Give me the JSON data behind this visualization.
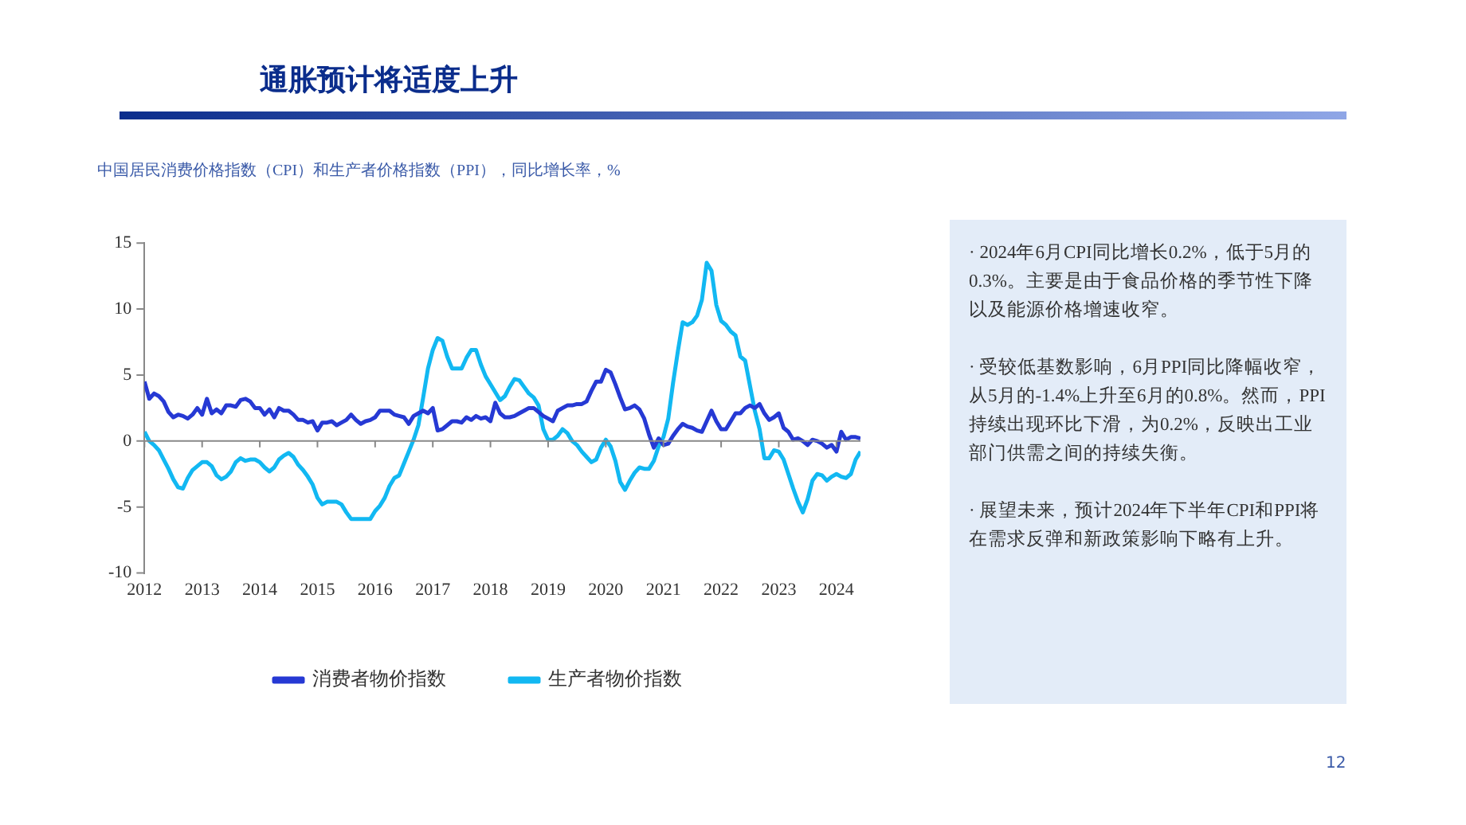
{
  "chart_data": {
    "type": "line",
    "title": "通胀预计将适度上升",
    "subtitle": "中国居民消费价格指数（CPI）和生产者价格指数（PPI），同比增长率，%",
    "annotations": [
      "· 2024年6月CPI同比增长0.2%，低于5月的0.3%。主要是由于食品价格的季节性下降以及能源价格增速收窄。",
      "· 受较低基数影响，6月PPI同比降幅收窄，从5月的-1.4%上升至6月的0.8%。然而，PPI持续出现环比下滑，为0.2%，反映出工业部门供需之间的持续失衡。",
      "· 展望未来，预计2024年下半年CPI和PPI将在需求反弹和新政策影响下略有上升。",
      "12"
    ],
    "x": [
      "2012-01",
      "2012-02",
      "2012-03",
      "2012-04",
      "2012-05",
      "2012-06",
      "2012-07",
      "2012-08",
      "2012-09",
      "2012-10",
      "2012-11",
      "2012-12",
      "2013-01",
      "2013-02",
      "2013-03",
      "2013-04",
      "2013-05",
      "2013-06",
      "2013-07",
      "2013-08",
      "2013-09",
      "2013-10",
      "2013-11",
      "2013-12",
      "2014-01",
      "2014-02",
      "2014-03",
      "2014-04",
      "2014-05",
      "2014-06",
      "2014-07",
      "2014-08",
      "2014-09",
      "2014-10",
      "2014-11",
      "2014-12",
      "2015-01",
      "2015-02",
      "2015-03",
      "2015-04",
      "2015-05",
      "2015-06",
      "2015-07",
      "2015-08",
      "2015-09",
      "2015-10",
      "2015-11",
      "2015-12",
      "2016-01",
      "2016-02",
      "2016-03",
      "2016-04",
      "2016-05",
      "2016-06",
      "2016-07",
      "2016-08",
      "2016-09",
      "2016-10",
      "2016-11",
      "2016-12",
      "2017-01",
      "2017-02",
      "2017-03",
      "2017-04",
      "2017-05",
      "2017-06",
      "2017-07",
      "2017-08",
      "2017-09",
      "2017-10",
      "2017-11",
      "2017-12",
      "2018-01",
      "2018-02",
      "2018-03",
      "2018-04",
      "2018-05",
      "2018-06",
      "2018-07",
      "2018-08",
      "2018-09",
      "2018-10",
      "2018-11",
      "2018-12",
      "2019-01",
      "2019-02",
      "2019-03",
      "2019-04",
      "2019-05",
      "2019-06",
      "2019-07",
      "2019-08",
      "2019-09",
      "2019-10",
      "2019-11",
      "2019-12",
      "2020-01",
      "2020-02",
      "2020-03",
      "2020-04",
      "2020-05",
      "2020-06",
      "2020-07",
      "2020-08",
      "2020-09",
      "2020-10",
      "2020-11",
      "2020-12",
      "2021-01",
      "2021-02",
      "2021-03",
      "2021-04",
      "2021-05",
      "2021-06",
      "2021-07",
      "2021-08",
      "2021-09",
      "2021-10",
      "2021-11",
      "2021-12",
      "2022-01",
      "2022-02",
      "2022-03",
      "2022-04",
      "2022-05",
      "2022-06",
      "2022-07",
      "2022-08",
      "2022-09",
      "2022-10",
      "2022-11",
      "2022-12",
      "2023-01",
      "2023-02",
      "2023-03",
      "2023-04",
      "2023-05",
      "2023-06",
      "2023-07",
      "2023-08",
      "2023-09",
      "2023-10",
      "2023-11",
      "2023-12",
      "2024-01",
      "2024-02",
      "2024-03",
      "2024-04",
      "2024-05",
      "2024-06"
    ],
    "series": [
      {
        "name": "消费者物价指数",
        "color": "#2639d4",
        "values": [
          4.5,
          3.2,
          3.6,
          3.4,
          3.0,
          2.2,
          1.8,
          2.0,
          1.9,
          1.7,
          2.0,
          2.5,
          2.0,
          3.2,
          2.1,
          2.4,
          2.1,
          2.7,
          2.7,
          2.6,
          3.1,
          3.2,
          3.0,
          2.5,
          2.5,
          2.0,
          2.4,
          1.8,
          2.5,
          2.3,
          2.3,
          2.0,
          1.6,
          1.6,
          1.4,
          1.5,
          0.8,
          1.4,
          1.4,
          1.5,
          1.2,
          1.4,
          1.6,
          2.0,
          1.6,
          1.3,
          1.5,
          1.6,
          1.8,
          2.3,
          2.3,
          2.3,
          2.0,
          1.9,
          1.8,
          1.3,
          1.9,
          2.1,
          2.3,
          2.1,
          2.5,
          0.8,
          0.9,
          1.2,
          1.5,
          1.5,
          1.4,
          1.8,
          1.6,
          1.9,
          1.7,
          1.8,
          1.5,
          2.9,
          2.1,
          1.8,
          1.8,
          1.9,
          2.1,
          2.3,
          2.5,
          2.5,
          2.2,
          1.9,
          1.7,
          1.5,
          2.3,
          2.5,
          2.7,
          2.7,
          2.8,
          2.8,
          3.0,
          3.8,
          4.5,
          4.5,
          5.4,
          5.2,
          4.3,
          3.3,
          2.4,
          2.5,
          2.7,
          2.4,
          1.7,
          0.5,
          -0.5,
          0.2,
          -0.3,
          -0.2,
          0.4,
          0.9,
          1.3,
          1.1,
          1.0,
          0.8,
          0.7,
          1.5,
          2.3,
          1.5,
          0.9,
          0.9,
          1.5,
          2.1,
          2.1,
          2.5,
          2.7,
          2.5,
          2.8,
          2.1,
          1.6,
          1.8,
          2.1,
          1.0,
          0.7,
          0.1,
          0.2,
          0.0,
          -0.3,
          0.1,
          0.0,
          -0.2,
          -0.5,
          -0.3,
          -0.8,
          0.7,
          0.1,
          0.3,
          0.3,
          0.2
        ]
      },
      {
        "name": "生产者物价指数",
        "color": "#12b8f2",
        "values": [
          0.7,
          0.0,
          -0.3,
          -0.7,
          -1.4,
          -2.1,
          -2.9,
          -3.5,
          -3.6,
          -2.8,
          -2.2,
          -1.9,
          -1.6,
          -1.6,
          -1.9,
          -2.6,
          -2.9,
          -2.7,
          -2.3,
          -1.6,
          -1.3,
          -1.5,
          -1.4,
          -1.4,
          -1.6,
          -2.0,
          -2.3,
          -2.0,
          -1.4,
          -1.1,
          -0.9,
          -1.2,
          -1.8,
          -2.2,
          -2.7,
          -3.3,
          -4.3,
          -4.8,
          -4.6,
          -4.6,
          -4.6,
          -4.8,
          -5.4,
          -5.9,
          -5.9,
          -5.9,
          -5.9,
          -5.9,
          -5.3,
          -4.9,
          -4.3,
          -3.4,
          -2.8,
          -2.6,
          -1.7,
          -0.8,
          0.1,
          1.2,
          3.3,
          5.5,
          6.9,
          7.8,
          7.6,
          6.4,
          5.5,
          5.5,
          5.5,
          6.3,
          6.9,
          6.9,
          5.8,
          4.9,
          4.3,
          3.7,
          3.1,
          3.4,
          4.1,
          4.7,
          4.6,
          4.1,
          3.6,
          3.3,
          2.7,
          0.9,
          0.1,
          0.1,
          0.4,
          0.9,
          0.6,
          0.0,
          -0.3,
          -0.8,
          -1.2,
          -1.6,
          -1.4,
          -0.5,
          0.1,
          -0.4,
          -1.5,
          -3.1,
          -3.7,
          -3.0,
          -2.4,
          -2.0,
          -2.1,
          -2.1,
          -1.5,
          -0.4,
          0.3,
          1.7,
          4.4,
          6.8,
          9.0,
          8.8,
          9.0,
          9.5,
          10.7,
          13.5,
          12.9,
          10.3,
          9.1,
          8.8,
          8.3,
          8.0,
          6.4,
          6.1,
          4.2,
          2.3,
          0.9,
          -1.3,
          -1.3,
          -0.7,
          -0.8,
          -1.4,
          -2.5,
          -3.6,
          -4.6,
          -5.4,
          -4.4,
          -3.0,
          -2.5,
          -2.6,
          -3.0,
          -2.7,
          -2.5,
          -2.7,
          -2.8,
          -2.5,
          -1.4,
          -0.8
        ]
      }
    ],
    "xlim": [
      "2012-01",
      "2024-06"
    ],
    "xticks": [
      {
        "value": "2012-01",
        "label": "2012"
      },
      {
        "value": "2013-01",
        "label": "2013"
      },
      {
        "value": "2014-01",
        "label": "2014"
      },
      {
        "value": "2015-01",
        "label": "2015"
      },
      {
        "value": "2016-01",
        "label": "2016"
      },
      {
        "value": "2017-01",
        "label": "2017"
      },
      {
        "value": "2018-01",
        "label": "2018"
      },
      {
        "value": "2019-01",
        "label": "2019"
      },
      {
        "value": "2020-01",
        "label": "2020"
      },
      {
        "value": "2021-01",
        "label": "2021"
      },
      {
        "value": "2022-01",
        "label": "2022"
      },
      {
        "value": "2023-01",
        "label": "2023"
      },
      {
        "value": "2024-01",
        "label": "2024"
      }
    ],
    "ylim": [
      -10,
      15
    ],
    "yticks": [
      -10,
      -5,
      0,
      5,
      10,
      15
    ],
    "ref_lines": [
      {
        "axis": "y",
        "value": 0,
        "color": "#888888"
      }
    ],
    "grid": false,
    "legend": "bottom",
    "marker": "none",
    "line_style": "solid"
  }
}
